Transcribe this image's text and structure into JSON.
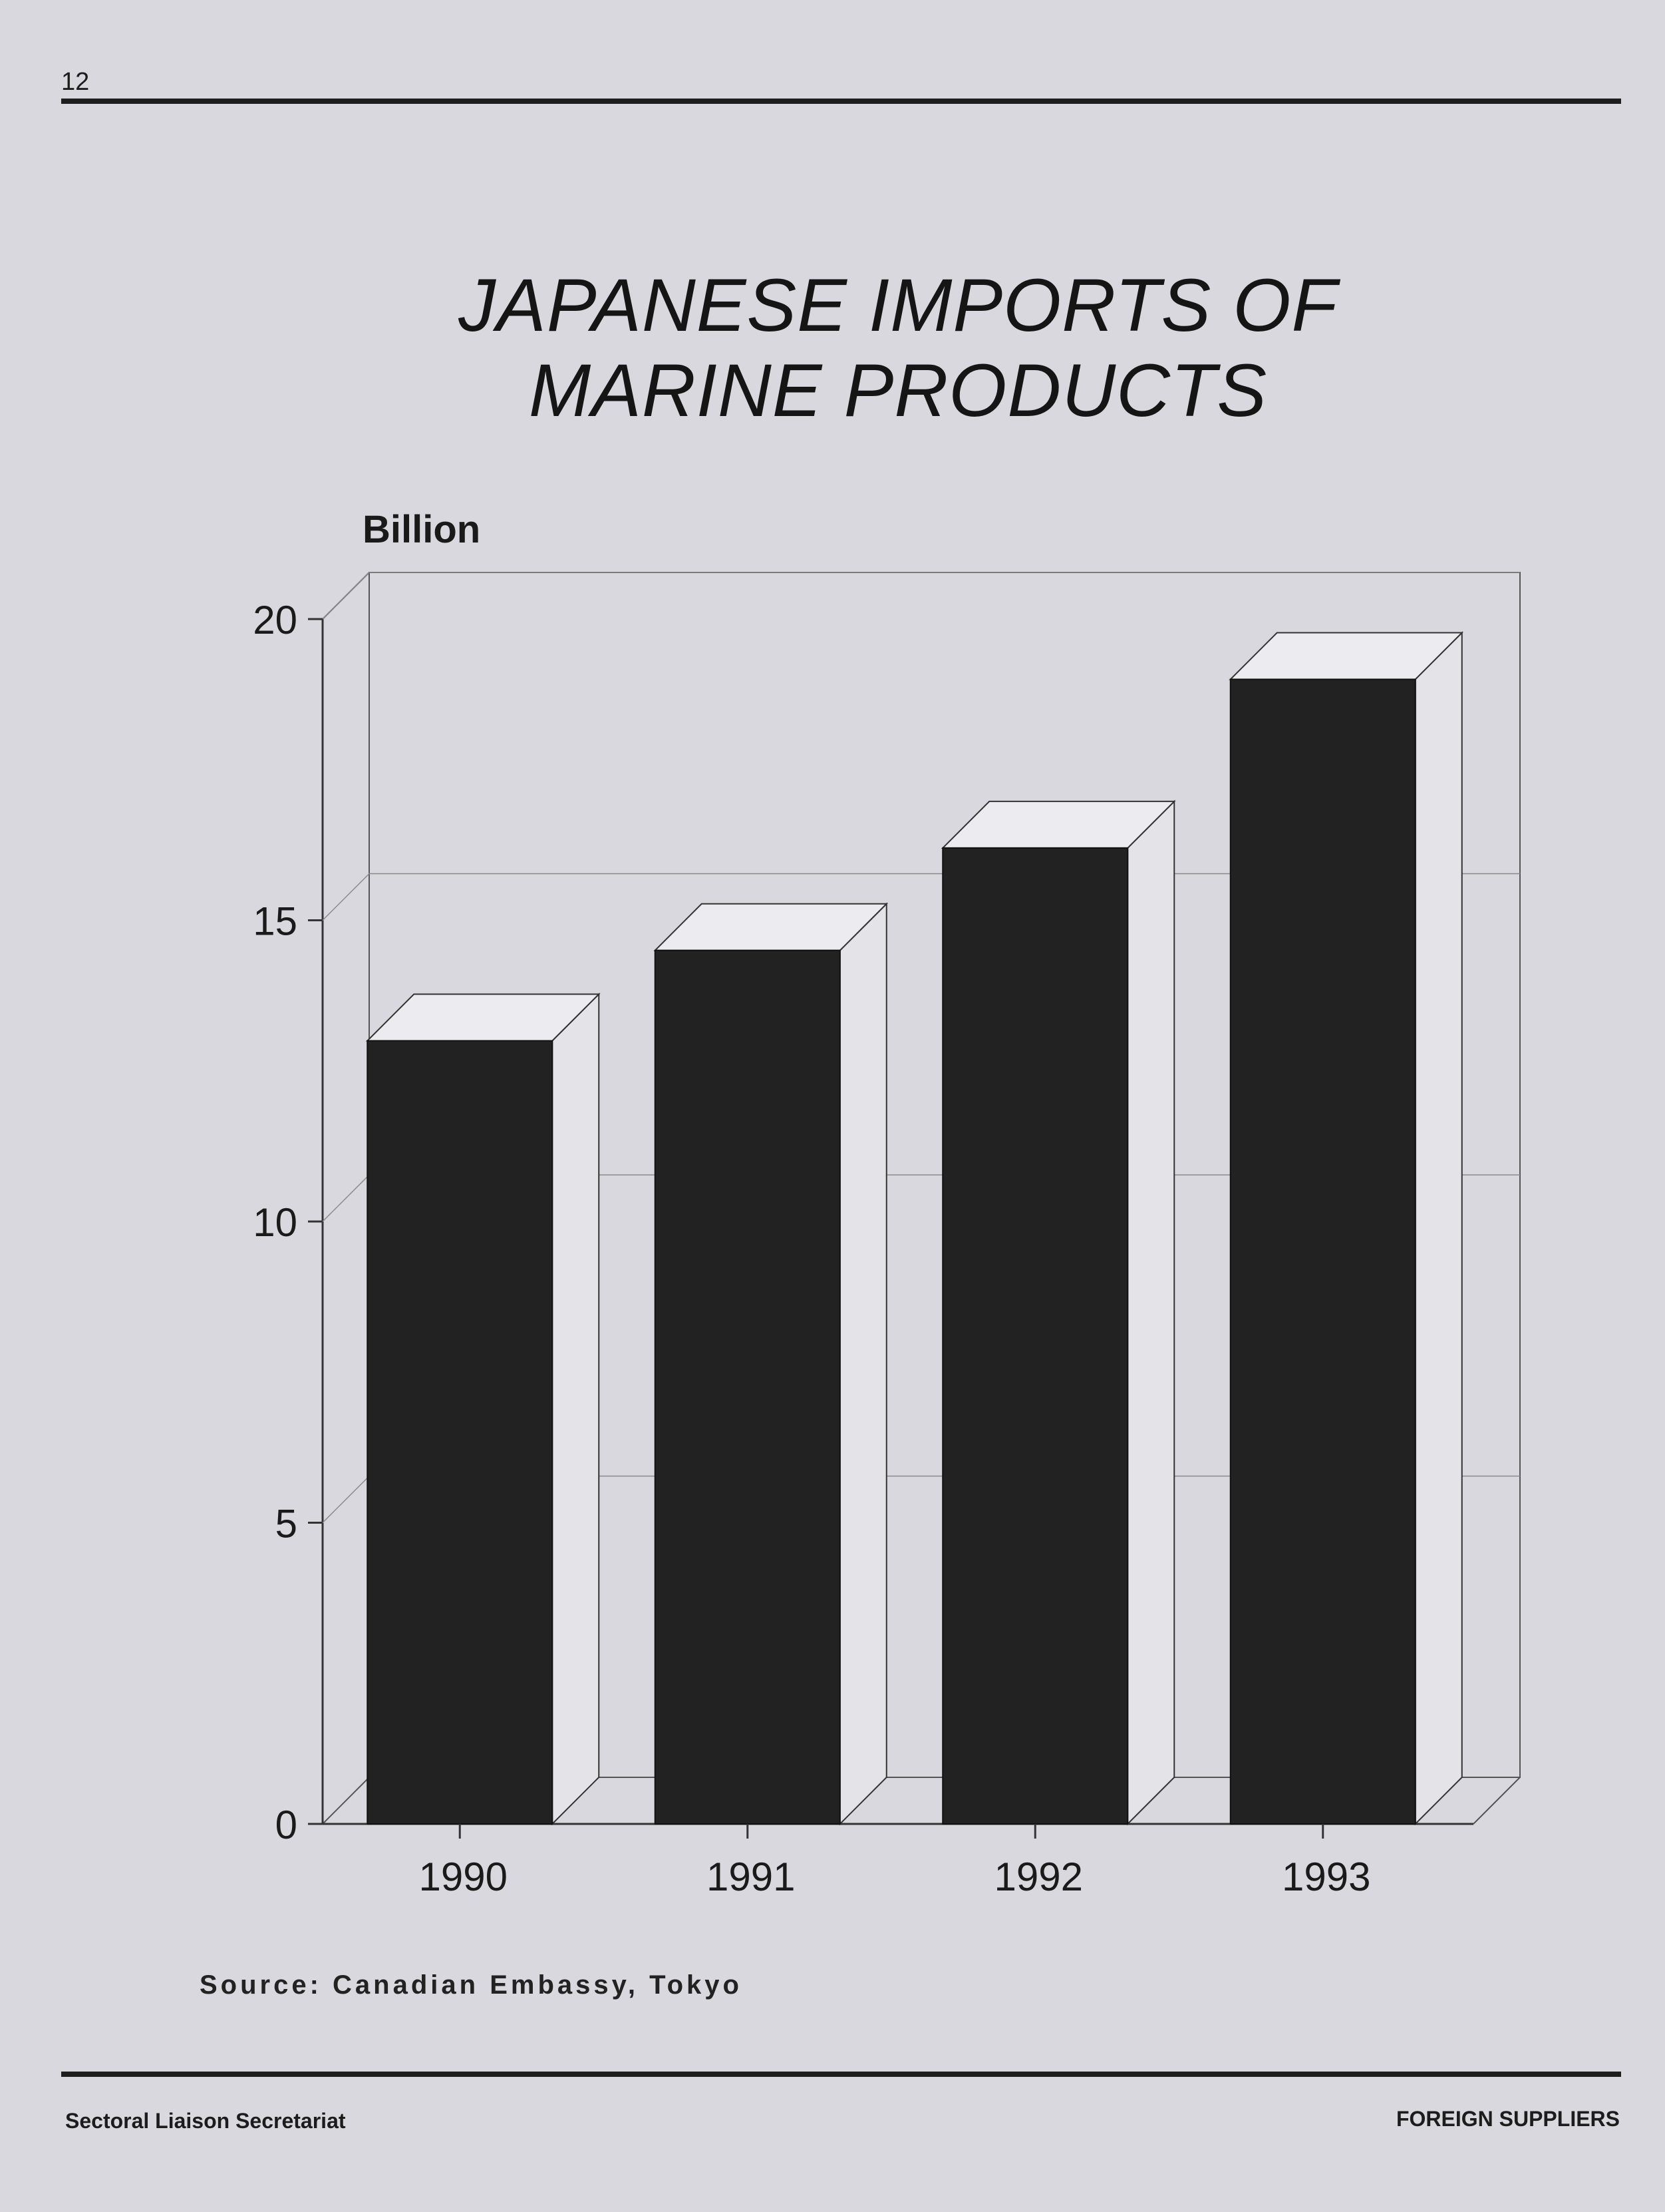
{
  "page": {
    "number": "12",
    "footer_left": "Sectoral Liaison Secretariat",
    "footer_right": "FOREIGN SUPPLIERS"
  },
  "chart_data": {
    "type": "bar",
    "title_lines": [
      "JAPANESE IMPORTS OF",
      "MARINE PRODUCTS"
    ],
    "ylabel": "Billion",
    "xlabel": "",
    "categories": [
      "1990",
      "1991",
      "1992",
      "1993"
    ],
    "values": [
      13.0,
      14.5,
      16.2,
      19.0
    ],
    "ylim": [
      0,
      20
    ],
    "yticks": [
      0,
      5,
      10,
      15,
      20
    ],
    "grid": true,
    "bar_style": "3d",
    "bar_color": "#222222",
    "source": "Source: Canadian Embassy, Tokyo"
  }
}
